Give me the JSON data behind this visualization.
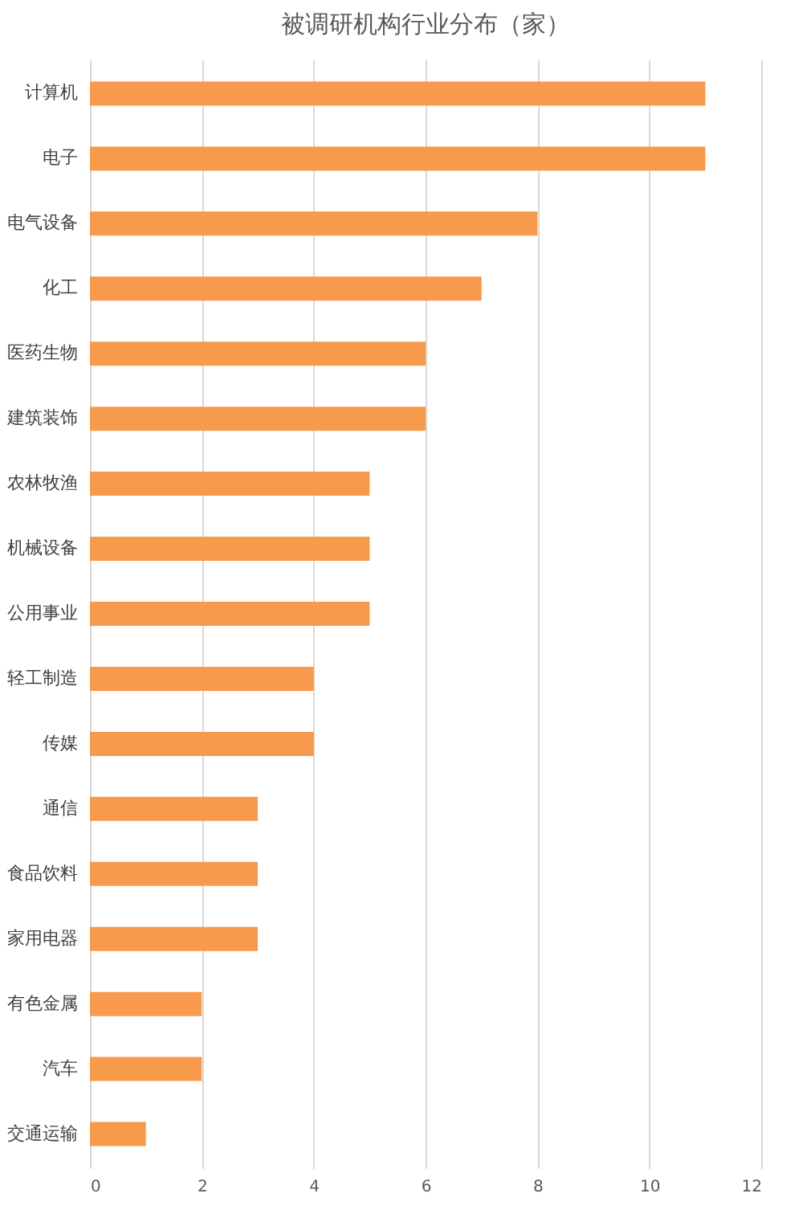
{
  "chart_data": {
    "type": "bar",
    "orientation": "horizontal",
    "title": "被调研机构行业分布（家）",
    "categories": [
      "计算机",
      "电子",
      "电气设备",
      "化工",
      "医药生物",
      "建筑装饰",
      "农林牧渔",
      "机械设备",
      "公用事业",
      "轻工制造",
      "传媒",
      "通信",
      "食品饮料",
      "家用电器",
      "有色金属",
      "汽车",
      "交通运输"
    ],
    "values": [
      11,
      11,
      8,
      7,
      6,
      6,
      5,
      5,
      5,
      4,
      4,
      3,
      3,
      3,
      2,
      2,
      1
    ],
    "color": "#f79a4b",
    "xlim": [
      0,
      12
    ],
    "xticks": [
      0,
      2,
      4,
      6,
      8,
      10,
      12
    ],
    "grid": "x"
  }
}
